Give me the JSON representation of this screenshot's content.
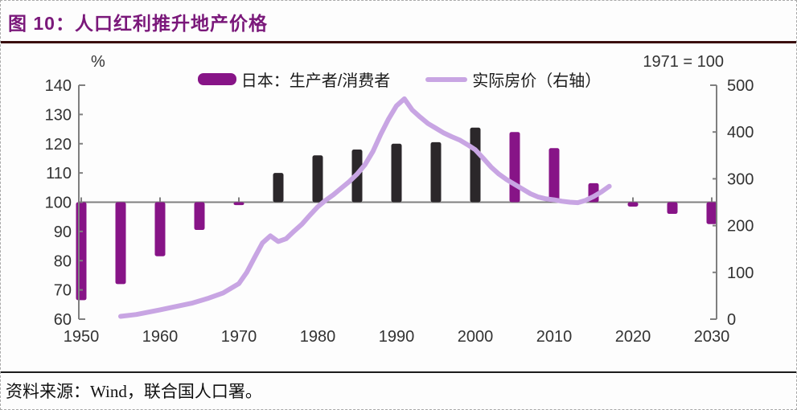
{
  "header": {
    "title": "图 10：人口红利推升地产价格"
  },
  "footer": {
    "source": "资料来源：Wind，联合国人口署。"
  },
  "colors": {
    "title": "#7a187a",
    "title_rule": "#3a0f0f",
    "source_rule": "#1c1c1c",
    "bar_purple": "#871487",
    "bar_dark": "#2b272a",
    "line": "#c8a5e3",
    "axis": "#7f7f7f",
    "tick_text": "#333333"
  },
  "chart_data": {
    "type": "bar+line combo",
    "title": "人口红利推升地产价格",
    "legend_position": "top-center",
    "grid": false,
    "baseline": 100,
    "left_axis": {
      "label": "%",
      "min": 60,
      "max": 140,
      "ticks": [
        140,
        130,
        120,
        110,
        100,
        90,
        80,
        70,
        60
      ]
    },
    "right_axis": {
      "label": "1971 = 100",
      "min": 0,
      "max": 500,
      "ticks": [
        500,
        400,
        300,
        200,
        100,
        0
      ]
    },
    "x_axis": {
      "tick_years": [
        1950,
        1960,
        1970,
        1980,
        1990,
        2000,
        2010,
        2020,
        2030
      ],
      "range": [
        1950,
        2030
      ]
    },
    "bars": {
      "name": "日本：生产者/消费者",
      "axis": "left",
      "bar_base": 100,
      "points": [
        {
          "year": 1950,
          "value": 66.5,
          "color": "purple"
        },
        {
          "year": 1955,
          "value": 72,
          "color": "purple"
        },
        {
          "year": 1960,
          "value": 81.5,
          "color": "purple"
        },
        {
          "year": 1965,
          "value": 90.5,
          "color": "purple"
        },
        {
          "year": 1970,
          "value": 99,
          "color": "purple"
        },
        {
          "year": 1975,
          "value": 110,
          "color": "dark"
        },
        {
          "year": 1980,
          "value": 116,
          "color": "dark"
        },
        {
          "year": 1985,
          "value": 118,
          "color": "dark"
        },
        {
          "year": 1990,
          "value": 120,
          "color": "dark"
        },
        {
          "year": 1995,
          "value": 120.5,
          "color": "dark"
        },
        {
          "year": 2000,
          "value": 125.5,
          "color": "dark"
        },
        {
          "year": 2005,
          "value": 124,
          "color": "purple"
        },
        {
          "year": 2010,
          "value": 118.5,
          "color": "purple"
        },
        {
          "year": 2015,
          "value": 106.5,
          "color": "purple"
        },
        {
          "year": 2020,
          "value": 98.5,
          "color": "purple"
        },
        {
          "year": 2025,
          "value": 96,
          "color": "purple"
        },
        {
          "year": 2030,
          "value": 92.5,
          "color": "purple"
        }
      ]
    },
    "line": {
      "name": "实际房价（右轴）",
      "axis": "right",
      "points": [
        [
          1955,
          6
        ],
        [
          1957,
          10
        ],
        [
          1960,
          20
        ],
        [
          1962,
          27
        ],
        [
          1964,
          34
        ],
        [
          1966,
          44
        ],
        [
          1968,
          56
        ],
        [
          1970,
          76
        ],
        [
          1971,
          100
        ],
        [
          1972,
          132
        ],
        [
          1973,
          163
        ],
        [
          1974,
          178
        ],
        [
          1975,
          166
        ],
        [
          1976,
          172
        ],
        [
          1977,
          188
        ],
        [
          1978,
          203
        ],
        [
          1979,
          222
        ],
        [
          1980,
          240
        ],
        [
          1981,
          254
        ],
        [
          1982,
          266
        ],
        [
          1983,
          280
        ],
        [
          1984,
          294
        ],
        [
          1985,
          310
        ],
        [
          1986,
          330
        ],
        [
          1987,
          358
        ],
        [
          1988,
          395
        ],
        [
          1989,
          428
        ],
        [
          1990,
          456
        ],
        [
          1991,
          471
        ],
        [
          1992,
          447
        ],
        [
          1993,
          432
        ],
        [
          1994,
          418
        ],
        [
          1995,
          408
        ],
        [
          1996,
          398
        ],
        [
          1997,
          390
        ],
        [
          1998,
          383
        ],
        [
          1999,
          373
        ],
        [
          2000,
          362
        ],
        [
          2001,
          344
        ],
        [
          2002,
          325
        ],
        [
          2003,
          310
        ],
        [
          2004,
          298
        ],
        [
          2005,
          288
        ],
        [
          2006,
          278
        ],
        [
          2007,
          268
        ],
        [
          2008,
          261
        ],
        [
          2009,
          257
        ],
        [
          2010,
          255
        ],
        [
          2011,
          252
        ],
        [
          2012,
          250
        ],
        [
          2013,
          249
        ],
        [
          2014,
          254
        ],
        [
          2015,
          262
        ],
        [
          2016,
          272
        ],
        [
          2017,
          284
        ]
      ]
    }
  }
}
